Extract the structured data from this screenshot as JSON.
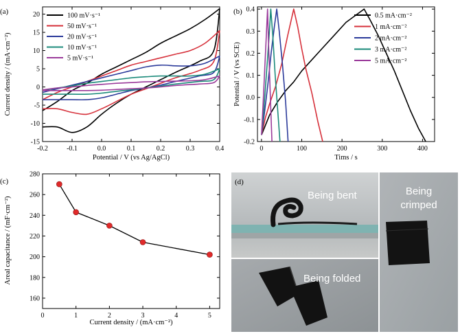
{
  "panel_labels": {
    "a": "(a)",
    "b": "(b)",
    "c": "(c)",
    "d": "(d)"
  },
  "photos": {
    "bent": "Being bent",
    "folded": "Being folded",
    "crimped_line1": "Being",
    "crimped_line2": "crimped"
  },
  "chart_data": [
    {
      "type": "line",
      "panel": "a",
      "xlabel": "Potential / V (vs Ag/AgCl)",
      "ylabel": "Current density / (mA·cm⁻²)",
      "xlim": [
        -0.2,
        0.4
      ],
      "ylim": [
        -15,
        22
      ],
      "x_ticks": [
        "-0.2",
        "-0.1",
        "0.0",
        "0.1",
        "0.2",
        "0.3",
        "0.4"
      ],
      "y_ticks": [
        "-15",
        "-10",
        "-5",
        "0",
        "5",
        "10",
        "15",
        "20"
      ],
      "legend": "top-left",
      "series": [
        {
          "name": "100 mV·s⁻¹",
          "color": "#000000",
          "forward": [
            [
              -0.2,
              -6.5
            ],
            [
              -0.15,
              -4
            ],
            [
              -0.1,
              -1
            ],
            [
              -0.05,
              1
            ],
            [
              0.0,
              3.5
            ],
            [
              0.05,
              5.5
            ],
            [
              0.1,
              7.5
            ],
            [
              0.15,
              9.5
            ],
            [
              0.2,
              12
            ],
            [
              0.25,
              14
            ],
            [
              0.3,
              16
            ],
            [
              0.35,
              18.5
            ],
            [
              0.4,
              21.5
            ]
          ],
          "reverse": [
            [
              0.4,
              21.5
            ],
            [
              0.38,
              10
            ],
            [
              0.33,
              7
            ],
            [
              0.25,
              4
            ],
            [
              0.2,
              2
            ],
            [
              0.15,
              0
            ],
            [
              0.1,
              -2
            ],
            [
              0.05,
              -4.5
            ],
            [
              0.0,
              -7.5
            ],
            [
              -0.05,
              -11
            ],
            [
              -0.1,
              -12.5
            ],
            [
              -0.15,
              -11
            ],
            [
              -0.2,
              -11
            ]
          ]
        },
        {
          "name": "50 mV·s⁻¹",
          "color": "#d6303a",
          "forward": [
            [
              -0.2,
              -3.5
            ],
            [
              -0.15,
              -1.5
            ],
            [
              -0.1,
              0
            ],
            [
              -0.05,
              1.5
            ],
            [
              0.0,
              3
            ],
            [
              0.05,
              4.5
            ],
            [
              0.1,
              6
            ],
            [
              0.15,
              7
            ],
            [
              0.2,
              8
            ],
            [
              0.25,
              9
            ],
            [
              0.3,
              10
            ],
            [
              0.35,
              12
            ],
            [
              0.4,
              15.5
            ]
          ],
          "reverse": [
            [
              0.4,
              15.5
            ],
            [
              0.38,
              7
            ],
            [
              0.33,
              4.5
            ],
            [
              0.25,
              2.5
            ],
            [
              0.2,
              1
            ],
            [
              0.15,
              -0.5
            ],
            [
              0.1,
              -2
            ],
            [
              0.05,
              -4
            ],
            [
              0.0,
              -6
            ],
            [
              -0.05,
              -7.5
            ],
            [
              -0.1,
              -7
            ],
            [
              -0.15,
              -6
            ],
            [
              -0.2,
              -6
            ]
          ]
        },
        {
          "name": "20 mV·s⁻¹",
          "color": "#2b3a9a",
          "forward": [
            [
              -0.2,
              -1.5
            ],
            [
              -0.15,
              -0.5
            ],
            [
              -0.1,
              0.5
            ],
            [
              -0.05,
              1.5
            ],
            [
              0.0,
              2.5
            ],
            [
              0.05,
              3.5
            ],
            [
              0.1,
              4.5
            ],
            [
              0.15,
              5.5
            ],
            [
              0.2,
              6
            ],
            [
              0.25,
              5.8
            ],
            [
              0.3,
              5.8
            ],
            [
              0.35,
              6.5
            ],
            [
              0.4,
              8.5
            ]
          ],
          "reverse": [
            [
              0.4,
              8.5
            ],
            [
              0.38,
              4
            ],
            [
              0.33,
              3
            ],
            [
              0.25,
              1.5
            ],
            [
              0.2,
              0.5
            ],
            [
              0.15,
              -0.3
            ],
            [
              0.1,
              -1
            ],
            [
              0.05,
              -2
            ],
            [
              0.0,
              -3
            ],
            [
              -0.05,
              -3.5
            ],
            [
              -0.1,
              -3.5
            ],
            [
              -0.15,
              -3.5
            ],
            [
              -0.2,
              -3.5
            ]
          ]
        },
        {
          "name": "10 mV·s⁻¹",
          "color": "#1a8a7a",
          "forward": [
            [
              -0.2,
              -1
            ],
            [
              -0.15,
              -0.3
            ],
            [
              -0.1,
              0.3
            ],
            [
              -0.05,
              1
            ],
            [
              0.0,
              1.5
            ],
            [
              0.05,
              2
            ],
            [
              0.1,
              2.5
            ],
            [
              0.15,
              2.8
            ],
            [
              0.2,
              3
            ],
            [
              0.25,
              3
            ],
            [
              0.3,
              3
            ],
            [
              0.35,
              3.5
            ],
            [
              0.4,
              5
            ]
          ],
          "reverse": [
            [
              0.4,
              5
            ],
            [
              0.38,
              2
            ],
            [
              0.33,
              1.5
            ],
            [
              0.25,
              0.8
            ],
            [
              0.2,
              0.2
            ],
            [
              0.15,
              -0.3
            ],
            [
              0.1,
              -0.8
            ],
            [
              0.05,
              -1.2
            ],
            [
              0.0,
              -1.7
            ],
            [
              -0.05,
              -2
            ],
            [
              -0.1,
              -2
            ],
            [
              -0.15,
              -2
            ],
            [
              -0.2,
              -2
            ]
          ]
        },
        {
          "name": "5 mV·s⁻¹",
          "color": "#9a3a9a",
          "forward": [
            [
              -0.2,
              -0.8
            ],
            [
              -0.15,
              -0.3
            ],
            [
              -0.1,
              0
            ],
            [
              -0.05,
              0.4
            ],
            [
              0.0,
              0.7
            ],
            [
              0.05,
              1
            ],
            [
              0.1,
              1.2
            ],
            [
              0.15,
              1.4
            ],
            [
              0.2,
              1.5
            ],
            [
              0.25,
              1.6
            ],
            [
              0.3,
              1.7
            ],
            [
              0.35,
              2
            ],
            [
              0.4,
              3
            ]
          ],
          "reverse": [
            [
              0.4,
              3
            ],
            [
              0.38,
              1.2
            ],
            [
              0.33,
              0.8
            ],
            [
              0.25,
              0.4
            ],
            [
              0.2,
              0
            ],
            [
              0.15,
              -0.3
            ],
            [
              0.1,
              -0.5
            ],
            [
              0.05,
              -0.7
            ],
            [
              0.0,
              -0.9
            ],
            [
              -0.05,
              -1
            ],
            [
              -0.1,
              -1
            ],
            [
              -0.15,
              -1
            ],
            [
              -0.2,
              -1
            ]
          ]
        }
      ]
    },
    {
      "type": "line",
      "panel": "b",
      "xlabel": "Tims / s",
      "ylabel": "Potential / V (vs SCE)",
      "xlim": [
        -10,
        430
      ],
      "ylim": [
        -0.2,
        0.41
      ],
      "x_ticks": [
        "0",
        "100",
        "200",
        "300",
        "400"
      ],
      "y_ticks": [
        "-0.2",
        "-0.1",
        "0.0",
        "0.1",
        "0.2",
        "0.3",
        "0.4"
      ],
      "legend": "top-right",
      "series": [
        {
          "name": "0.5 mA·cm⁻²",
          "color": "#000000",
          "x": [
            0,
            20,
            40,
            60,
            80,
            100,
            120,
            150,
            180,
            210,
            240,
            255,
            270,
            290,
            310,
            330,
            350,
            370,
            390,
            408
          ],
          "y": [
            -0.17,
            -0.08,
            -0.02,
            0.03,
            0.07,
            0.12,
            0.16,
            0.22,
            0.28,
            0.34,
            0.38,
            0.4,
            0.35,
            0.28,
            0.2,
            0.12,
            0.03,
            -0.06,
            -0.14,
            -0.2
          ]
        },
        {
          "name": "1 mA·cm⁻²",
          "color": "#d6303a",
          "x": [
            0,
            10,
            20,
            35,
            50,
            65,
            80,
            90,
            100,
            110,
            125,
            140,
            152
          ],
          "y": [
            -0.17,
            -0.09,
            -0.03,
            0.05,
            0.15,
            0.28,
            0.4,
            0.32,
            0.22,
            0.13,
            0.02,
            -0.11,
            -0.2
          ]
        },
        {
          "name": "2 mA·cm⁻²",
          "color": "#2b3a9a",
          "x": [
            0,
            8,
            16,
            24,
            32,
            38,
            44,
            52,
            60,
            66
          ],
          "y": [
            -0.17,
            -0.06,
            0.06,
            0.2,
            0.32,
            0.4,
            0.3,
            0.15,
            -0.02,
            -0.2
          ]
        },
        {
          "name": "3 mA·cm⁻²",
          "color": "#1a8a7a",
          "x": [
            0,
            6,
            12,
            18,
            23,
            28,
            34,
            40,
            46
          ],
          "y": [
            -0.17,
            -0.05,
            0.1,
            0.25,
            0.4,
            0.28,
            0.1,
            -0.05,
            -0.2
          ]
        },
        {
          "name": "5 mA·cm⁻²",
          "color": "#9a3a9a",
          "x": [
            0,
            4,
            8,
            12,
            15,
            18,
            22,
            26
          ],
          "y": [
            -0.17,
            -0.03,
            0.13,
            0.28,
            0.4,
            0.22,
            0.0,
            -0.2
          ]
        }
      ]
    },
    {
      "type": "line",
      "panel": "c",
      "xlabel": "Current density / (mA·cm⁻²)",
      "ylabel": "Areal capacitance / (mF·cm⁻²)",
      "xlim": [
        0,
        5.3
      ],
      "ylim": [
        150,
        280
      ],
      "x_ticks": [
        "0",
        "1",
        "2",
        "3",
        "4",
        "5"
      ],
      "y_ticks": [
        "160",
        "180",
        "200",
        "220",
        "240",
        "260",
        "280"
      ],
      "line_color": "#000000",
      "marker_color": "#e02a2a",
      "x": [
        0.5,
        1,
        2,
        3,
        5
      ],
      "y": [
        270,
        243,
        230,
        214,
        202
      ]
    }
  ]
}
